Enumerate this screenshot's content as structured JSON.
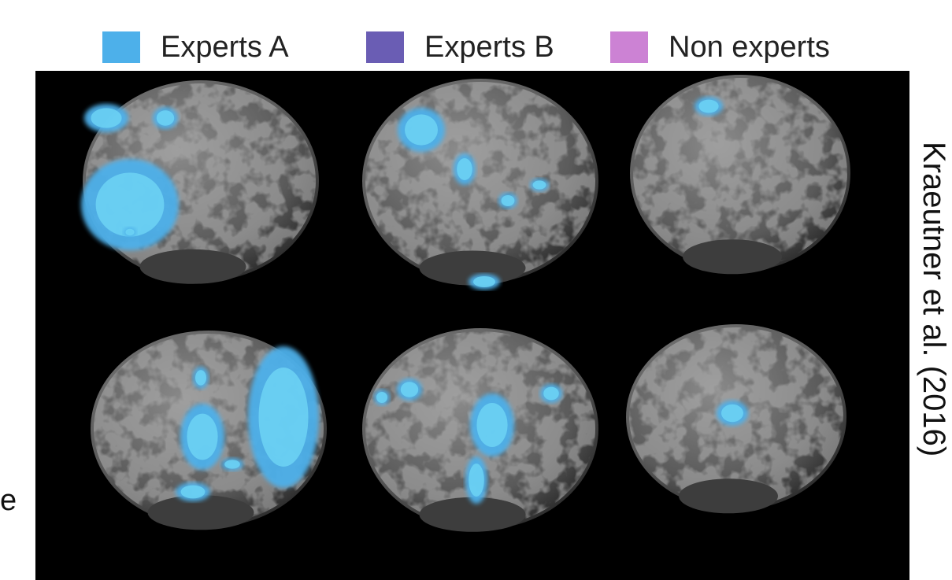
{
  "legend": {
    "items": [
      {
        "label": "Experts A",
        "color": "#4db0ea"
      },
      {
        "label": "Experts B",
        "color": "#6a5db4"
      },
      {
        "label": "Non experts",
        "color": "#cc82d4"
      }
    ]
  },
  "credit": "Kraeutner et al. (2016)",
  "fragment": "e"
}
